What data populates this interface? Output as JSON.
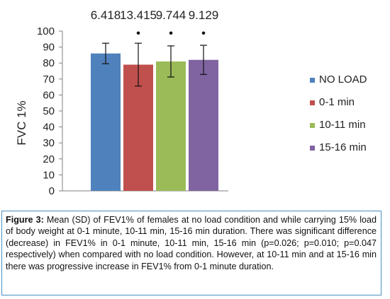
{
  "chart_data": {
    "type": "bar",
    "categories": [
      "NO LOAD",
      "0-1 min",
      "10-11 min",
      "15-16 min"
    ],
    "series": [
      {
        "name": "NO LOAD",
        "color": "#4f81bd"
      },
      {
        "name": "0-1 min",
        "color": "#c0504d"
      },
      {
        "name": "10-11 min",
        "color": "#9bbb59"
      },
      {
        "name": "15-16 min",
        "color": "#8064a2"
      }
    ],
    "values": [
      86,
      79,
      81,
      82
    ],
    "error": [
      6.418,
      13.415,
      9.744,
      9.129
    ],
    "sd_labels": [
      "6.418",
      "13.415",
      "9.744",
      "9.129"
    ],
    "significance": [
      false,
      true,
      true,
      true
    ],
    "significance_marker": "•",
    "ylabel": "FVC 1%",
    "ylim": [
      0,
      100
    ],
    "yticks": [
      0,
      10,
      20,
      30,
      40,
      50,
      60,
      70,
      80,
      90,
      100
    ],
    "legend": "right",
    "grid": false
  },
  "caption": {
    "label": "Figure 3:",
    "text": " Mean (SD) of FEV1% of females at no load condition and while carrying 15% load of body weight at 0-1 minute, 10-11 min, 15-16 min duration. There was significant difference (decrease) in FEV1% in 0-1 minute, 10-11 min, 15-16 min (p=0.026; p=0.010; p=0.047 respectively) when compared with no load condition. However, at 10-11 min and at 15-16 min there was progressive increase in FEV1% from 0-1 minute duration."
  }
}
